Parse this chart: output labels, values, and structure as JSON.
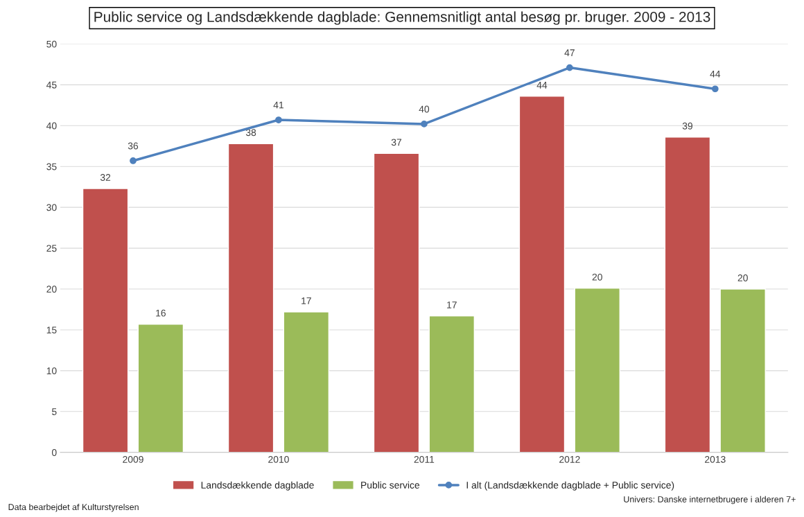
{
  "chart_data": {
    "type": "bar",
    "title": "Public service og Landsdækkende dagblade: Gennemsnitligt antal besøg pr. bruger. 2009 - 2013",
    "categories": [
      "2009",
      "2010",
      "2011",
      "2012",
      "2013"
    ],
    "series": [
      {
        "name": "Landsdækkende dagblade",
        "color": "#c0504d",
        "values": [
          32.3,
          37.8,
          36.6,
          43.6,
          38.6
        ],
        "value_labels": [
          "32",
          "38",
          "37",
          "44",
          "39"
        ]
      },
      {
        "name": "Public service",
        "color": "#9bbb59",
        "values": [
          15.7,
          17.2,
          16.7,
          20.1,
          20.0
        ],
        "value_labels": [
          "16",
          "17",
          "17",
          "20",
          "20"
        ]
      },
      {
        "name": "I alt (Landsdækkende dagblade + Public service)",
        "type": "line",
        "color": "#4f81bd",
        "marker": "circle",
        "values": [
          35.7,
          40.7,
          40.2,
          47.1,
          44.5
        ],
        "value_labels": [
          "36",
          "41",
          "40",
          "47",
          "44"
        ]
      }
    ],
    "ylim": [
      0,
      50
    ],
    "yticks": [
      0,
      5,
      10,
      15,
      20,
      25,
      30,
      35,
      40,
      45,
      50
    ],
    "grid": "y",
    "legend": "bottom",
    "annotations": [
      "Data bearbejdet af Kulturstyrelsen",
      "Univers: Danske internetbrugere i alderen 7+"
    ]
  }
}
